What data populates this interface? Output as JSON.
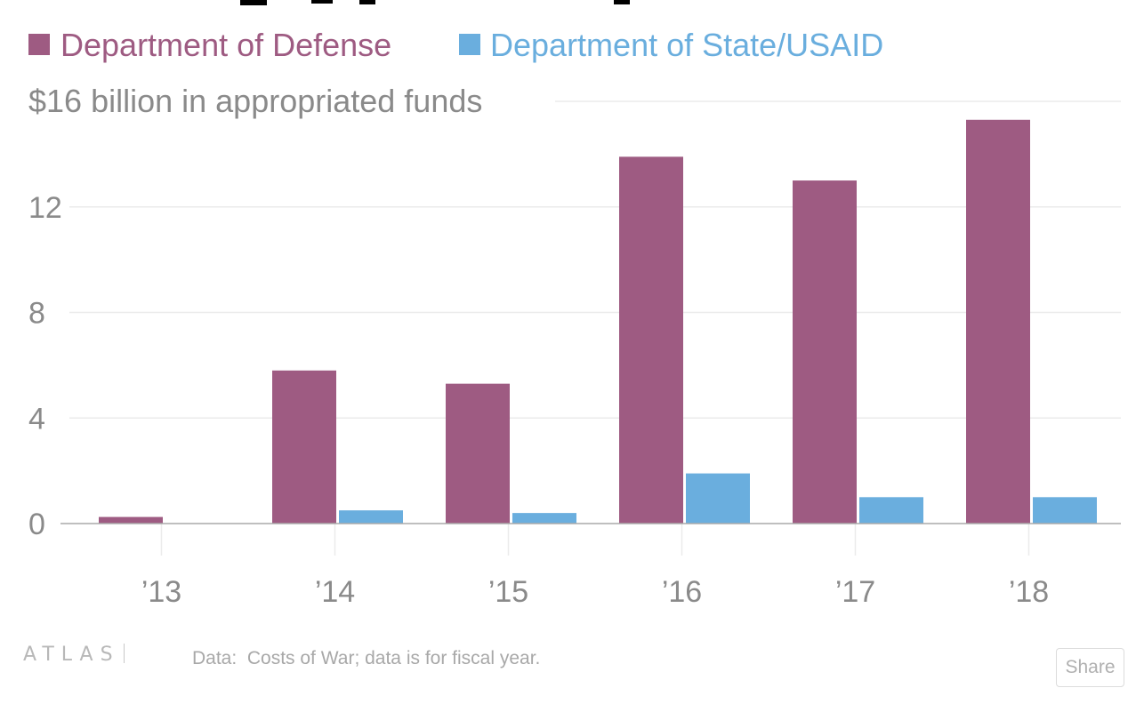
{
  "chart_data": {
    "type": "bar",
    "title": "",
    "categories": [
      "’13",
      "’14",
      "’15",
      "’16",
      "’17",
      "’18"
    ],
    "series": [
      {
        "name": "Department of Defense",
        "color": "#9e5b82",
        "values": [
          0.25,
          5.8,
          5.3,
          13.9,
          13.0,
          15.3
        ]
      },
      {
        "name": "Department of State/USAID",
        "color": "#6aaede",
        "values": [
          0,
          0.5,
          0.4,
          1.9,
          1.0,
          1.0
        ]
      }
    ],
    "ylabel": "$16 billion in appropriated funds",
    "yticks": [
      0,
      4,
      8,
      12
    ],
    "ylim": [
      0,
      16
    ],
    "grid": true,
    "legend": "top-left"
  },
  "footer": {
    "brand": "ATLAS",
    "note": "Data:  Costs of War; data is for fiscal year.",
    "share_label": "Share"
  }
}
